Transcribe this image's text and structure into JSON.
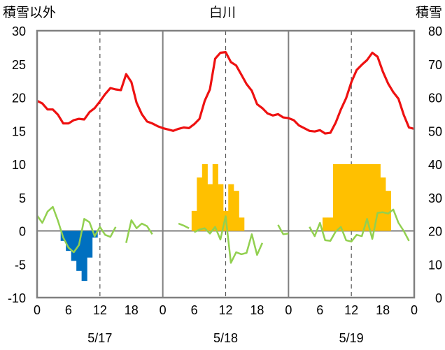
{
  "chart_data": {
    "type": "combo",
    "title": "白川",
    "left_axis_label": "積雪以外",
    "right_axis_label": "積雪",
    "left_ticks": [
      "30",
      "25",
      "20",
      "15",
      "10",
      "5",
      "0",
      "-5",
      "-10"
    ],
    "right_ticks": [
      "80",
      "70",
      "60",
      "50",
      "40",
      "30",
      "20",
      "10",
      "0"
    ],
    "x_tick_labels": [
      "0",
      "6",
      "12",
      "18",
      "0",
      "6",
      "12",
      "18",
      "0",
      "6",
      "12",
      "18",
      "0"
    ],
    "dates": [
      "5/17",
      "5/18",
      "5/19"
    ],
    "left_ylim": [
      -10,
      30
    ],
    "right_ylim": [
      0,
      80
    ],
    "x_range_hours": [
      0,
      72
    ],
    "grid": "dashed vertical lines at 12h; solid lines at day boundaries and at y=0",
    "colors": {
      "temperature": "#ee1111",
      "snow_depth_change_positive": "#ffc000",
      "snow_depth_change_negative": "#0070c0",
      "snow_depth": "#92d050",
      "axis": "#808080"
    },
    "series": [
      {
        "key": "temperature",
        "axis": "left",
        "x": [
          0,
          1,
          2,
          3,
          4,
          5,
          6,
          7,
          8,
          9,
          10,
          11,
          12,
          13,
          14,
          15,
          16,
          17,
          18,
          19,
          20,
          21,
          22,
          23,
          24,
          25,
          26,
          27,
          28,
          29,
          30,
          31,
          32,
          33,
          34,
          35,
          36,
          37,
          38,
          39,
          40,
          41,
          42,
          43,
          44,
          45,
          46,
          47,
          48,
          49,
          50,
          51,
          52,
          53,
          54,
          55,
          56,
          57,
          58,
          59,
          60,
          61,
          62,
          63,
          64,
          65,
          66,
          67,
          68,
          69,
          70,
          71
        ],
        "values": [
          19.5,
          19.1,
          18.2,
          18.2,
          17.4,
          16.1,
          16.1,
          16.6,
          16.8,
          16.7,
          17.8,
          18.4,
          19.4,
          20.5,
          21.4,
          21.2,
          21.1,
          23.5,
          22.3,
          19.2,
          17.5,
          16.4,
          16.1,
          15.7,
          15.4,
          15.2,
          15.0,
          15.3,
          15.5,
          15.4,
          16.0,
          16.8,
          19.5,
          21.2,
          25.8,
          26.7,
          26.8,
          25.3,
          24.8,
          23.4,
          22.0,
          21.0,
          19.0,
          18.4,
          17.6,
          17.3,
          17.5,
          17.0,
          16.9,
          16.6,
          15.8,
          15.4,
          15.0,
          14.9,
          15.1,
          14.6,
          14.7,
          16.2,
          18.2,
          19.9,
          22.3,
          24.1,
          24.9,
          25.6,
          26.7,
          26.1,
          23.9,
          22.1,
          20.8,
          19.8,
          17.4,
          15.5
        ],
        "extra_point": [
          72,
          15.3
        ]
      },
      {
        "key": "snow_depth_change",
        "axis": "left",
        "type": "bar",
        "x": [
          5,
          6,
          7,
          8,
          9,
          10,
          11,
          30,
          31,
          32,
          33,
          34,
          35,
          36,
          37,
          38,
          39,
          55,
          56,
          57,
          58,
          59,
          60,
          61,
          62,
          63,
          64,
          65,
          66,
          67
        ],
        "values": [
          -1.5,
          -3,
          -4.5,
          -6,
          -7.5,
          -4,
          -1,
          3,
          8,
          10,
          7,
          10,
          7,
          3,
          7,
          6,
          2,
          2,
          2,
          10,
          10,
          10,
          10,
          10,
          10,
          10,
          10,
          10,
          8,
          6
        ]
      },
      {
        "key": "snow_depth",
        "axis": "left",
        "segments": [
          [
            [
              0,
              2.3
            ],
            [
              1,
              1.2
            ],
            [
              2,
              2.9
            ],
            [
              3,
              3.6
            ],
            [
              4,
              1.5
            ],
            [
              5,
              -1.0
            ],
            [
              6,
              -2.5
            ],
            [
              7,
              -3.2
            ],
            [
              8,
              -2.1
            ],
            [
              9,
              1.8
            ],
            [
              10,
              1.3
            ],
            [
              11,
              -0.8
            ],
            [
              12,
              0.6
            ],
            [
              13,
              -0.6
            ],
            [
              14,
              -0.9
            ],
            [
              15,
              0.6
            ]
          ],
          [
            [
              17,
              -1.8
            ],
            [
              18,
              1.6
            ],
            [
              19,
              0.4
            ],
            [
              20,
              1.1
            ],
            [
              21,
              0.7
            ],
            [
              22,
              -0.5
            ]
          ],
          [
            [
              27,
              1.1
            ],
            [
              28,
              0.8
            ],
            [
              29,
              0.4
            ]
          ],
          [
            [
              30,
              -0.2
            ],
            [
              31,
              0.2
            ],
            [
              32,
              0.4
            ],
            [
              33,
              -0.4
            ],
            [
              34,
              0.6
            ],
            [
              35,
              -1.3
            ],
            [
              36,
              2.2
            ],
            [
              37,
              -4.8
            ],
            [
              38,
              -3.2
            ],
            [
              39,
              -3.5
            ],
            [
              40,
              -3.3
            ],
            [
              41,
              -0.5
            ],
            [
              42,
              -3.6
            ],
            [
              43,
              -1.8
            ]
          ],
          [
            [
              46,
              0.9
            ],
            [
              47,
              -0.5
            ],
            [
              48,
              -0.4
            ]
          ],
          [
            [
              52,
              0.6
            ],
            [
              53,
              -0.8
            ],
            [
              54,
              1.2
            ],
            [
              55,
              -1.4
            ],
            [
              56,
              -1.5
            ],
            [
              57,
              -0.1
            ],
            [
              58,
              0.6
            ],
            [
              59,
              -1.4
            ],
            [
              60,
              -1.6
            ],
            [
              61,
              -0.6
            ],
            [
              62,
              -0.8
            ],
            [
              63,
              1.8
            ],
            [
              64,
              -1.2
            ],
            [
              65,
              2.7
            ],
            [
              66,
              2.8
            ],
            [
              67,
              2.6
            ],
            [
              68,
              3.2
            ],
            [
              69,
              1.2
            ],
            [
              70,
              0.0
            ],
            [
              71,
              -1.5
            ]
          ]
        ]
      }
    ]
  }
}
